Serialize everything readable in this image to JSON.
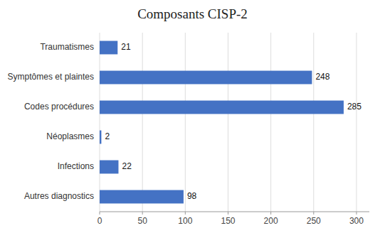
{
  "chart_data": {
    "type": "bar",
    "orientation": "horizontal",
    "title": "Composants CISP-2",
    "categories": [
      "Traumatismes",
      "Symptômes et plaintes",
      "Codes procédures",
      "Néoplasmes",
      "Infections",
      "Autres diagnostics"
    ],
    "values": [
      21,
      248,
      285,
      2,
      22,
      98
    ],
    "color": "#4472C4",
    "xlim": [
      0,
      315
    ],
    "xticks": [
      0,
      50,
      100,
      150,
      200,
      250,
      300
    ],
    "grid": true,
    "data_labels": true
  }
}
